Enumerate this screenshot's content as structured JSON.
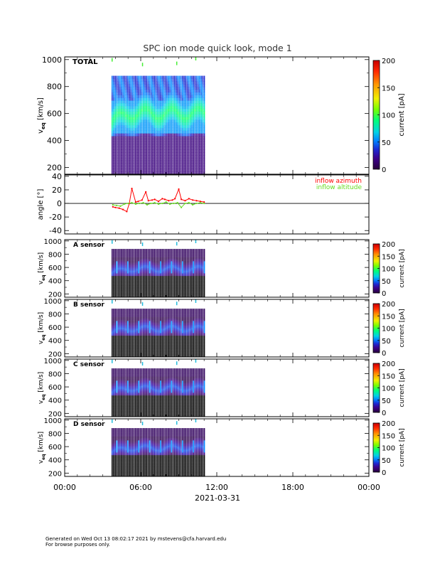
{
  "title": "SPC ion mode quick look, mode 1",
  "footer": {
    "line1": "Generated on Wed Oct 13 08:02:17 2021 by mstevens@cfa.harvard.edu",
    "line2": "For browse purposes only."
  },
  "chart_data": [
    {
      "id": "total",
      "type": "heatmap",
      "label": "TOTAL",
      "ylabel": "v_eq [km/s]",
      "ylabel_main": "v",
      "ylabel_sub": "eq",
      "ylabel_units": " [km/s]",
      "ylim": [
        150,
        1020
      ],
      "yticks": [
        200,
        400,
        600,
        800,
        1000
      ],
      "x_data_range_hours": [
        3.7,
        11.1
      ],
      "v_range": [
        150,
        880
      ],
      "colorbar": {
        "label": "current [pA]",
        "range": [
          0,
          200
        ],
        "ticks": [
          0,
          50,
          100,
          150,
          200
        ]
      }
    },
    {
      "id": "angle",
      "type": "scatter",
      "ylabel": "angle [°]",
      "ylim": [
        -45,
        42
      ],
      "yticks": [
        -40,
        -20,
        0,
        20,
        40
      ],
      "legend": [
        {
          "name": "inflow azimuth",
          "color": "#ff0000"
        },
        {
          "name": "inflow altitude",
          "color": "#66dd22"
        }
      ],
      "series": [
        {
          "name": "inflow azimuth",
          "color": "#ff0000",
          "x": [
            3.8,
            4.0,
            4.3,
            4.6,
            4.9,
            5.1,
            5.3,
            5.6,
            5.8,
            6.1,
            6.4,
            6.6,
            6.9,
            7.1,
            7.4,
            7.7,
            7.9,
            8.2,
            8.5,
            8.7,
            9.0,
            9.2,
            9.5,
            9.8,
            10.1,
            10.4,
            10.7,
            11.0
          ],
          "y": [
            -5,
            -6,
            -7,
            -9,
            -12,
            0,
            22,
            2,
            3,
            5,
            17,
            4,
            5,
            6,
            3,
            7,
            6,
            4,
            5,
            7,
            21,
            6,
            4,
            7,
            5,
            4,
            3,
            2
          ]
        },
        {
          "name": "inflow altitude",
          "color": "#66dd22",
          "x": [
            3.8,
            4.1,
            4.4,
            4.7,
            5.0,
            5.3,
            5.6,
            5.9,
            6.2,
            6.5,
            6.8,
            7.1,
            7.4,
            7.7,
            8.0,
            8.3,
            8.6,
            8.9,
            9.2,
            9.5,
            9.8,
            10.1,
            10.4,
            10.7,
            11.0
          ],
          "y": [
            -2,
            -3,
            -4,
            -1,
            0,
            1,
            -1,
            0,
            1,
            -2,
            0,
            1,
            -1,
            0,
            2,
            -1,
            0,
            1,
            -6,
            0,
            1,
            -2,
            0,
            1,
            0
          ]
        }
      ]
    },
    {
      "id": "A",
      "type": "heatmap",
      "label": "A sensor",
      "ylabel": "v_eq [km/s]",
      "ylabel_main": "v",
      "ylabel_sub": "eq",
      "ylabel_units": " [km/s]",
      "ylim": [
        150,
        1020
      ],
      "yticks": [
        200,
        400,
        600,
        800,
        1000
      ],
      "x_data_range_hours": [
        3.7,
        11.1
      ],
      "v_range": [
        150,
        880
      ],
      "colorbar": {
        "label": "current [pA]",
        "range": [
          0,
          200
        ],
        "ticks": [
          0,
          50,
          100,
          150,
          200
        ]
      }
    },
    {
      "id": "B",
      "type": "heatmap",
      "label": "B sensor",
      "ylabel": "v_eq [km/s]",
      "ylabel_main": "v",
      "ylabel_sub": "eq",
      "ylabel_units": " [km/s]",
      "ylim": [
        150,
        1020
      ],
      "yticks": [
        200,
        400,
        600,
        800,
        1000
      ],
      "x_data_range_hours": [
        3.7,
        11.1
      ],
      "v_range": [
        150,
        880
      ],
      "colorbar": {
        "label": "current [pA]",
        "range": [
          0,
          200
        ],
        "ticks": [
          0,
          50,
          100,
          150,
          200
        ]
      }
    },
    {
      "id": "C",
      "type": "heatmap",
      "label": "C sensor",
      "ylabel": "v_eq [km/s]",
      "ylabel_main": "v",
      "ylabel_sub": "eq",
      "ylabel_units": " [km/s]",
      "ylim": [
        150,
        1020
      ],
      "yticks": [
        200,
        400,
        600,
        800,
        1000
      ],
      "x_data_range_hours": [
        3.7,
        11.1
      ],
      "v_range": [
        150,
        880
      ],
      "colorbar": {
        "label": "current [pA]",
        "range": [
          0,
          200
        ],
        "ticks": [
          0,
          50,
          100,
          150,
          200
        ]
      }
    },
    {
      "id": "D",
      "type": "heatmap",
      "label": "D sensor",
      "ylabel": "v_eq [km/s]",
      "ylabel_main": "v",
      "ylabel_sub": "eq",
      "ylabel_units": " [km/s]",
      "ylim": [
        150,
        1020
      ],
      "yticks": [
        200,
        400,
        600,
        800,
        1000
      ],
      "x_data_range_hours": [
        3.7,
        11.1
      ],
      "v_range": [
        150,
        880
      ],
      "colorbar": {
        "label": "current [pA]",
        "range": [
          0,
          200
        ],
        "ticks": [
          0,
          50,
          100,
          150,
          200
        ]
      }
    }
  ],
  "x_axis": {
    "range_hours": [
      0,
      24
    ],
    "ticks": [
      {
        "hour": 0,
        "label": "00:00"
      },
      {
        "hour": 6,
        "label": "06:00"
      },
      {
        "hour": 12,
        "label": "12:00"
      },
      {
        "hour": 18,
        "label": "18:00"
      },
      {
        "hour": 24,
        "label": "00:00"
      }
    ],
    "date_label": "2021-03-31"
  }
}
